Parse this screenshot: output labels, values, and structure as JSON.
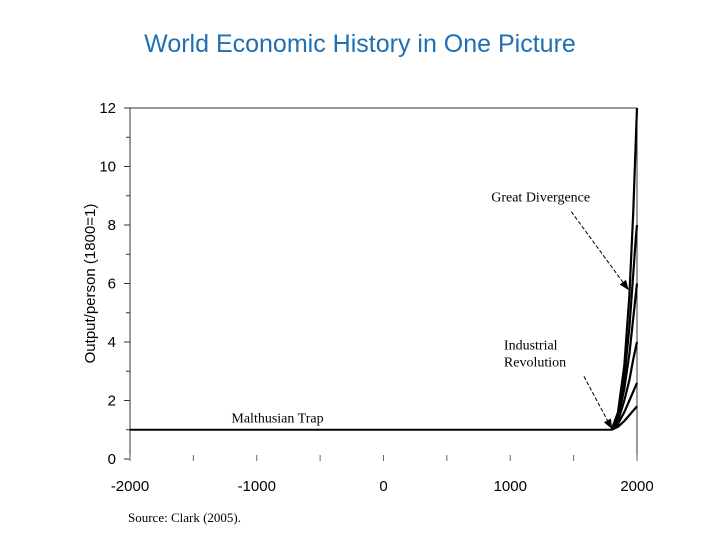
{
  "title": "World Economic History in One Picture",
  "source": "Source: Clark (2005).",
  "chart_data": {
    "type": "line",
    "title": "World Economic History in One Picture",
    "xlabel": "",
    "ylabel": "Output/person (1800=1)",
    "xlim": [
      -2000,
      2000
    ],
    "ylim": [
      0,
      12
    ],
    "x_ticks": [
      -2000,
      -1000,
      0,
      1000,
      2000
    ],
    "y_ticks": [
      0,
      2,
      4,
      6,
      8,
      10,
      12
    ],
    "grid": false,
    "series": [
      {
        "x": [
          -2000,
          1800
        ],
        "y": [
          1,
          1
        ]
      },
      {
        "x": [
          1800,
          1850,
          1900,
          1940,
          1970,
          1990,
          2000
        ],
        "y": [
          1,
          1.6,
          3.2,
          5.6,
          8.4,
          10.8,
          12
        ]
      },
      {
        "x": [
          1800,
          1850,
          1900,
          1940,
          1970,
          1990,
          2000
        ],
        "y": [
          1,
          1.5,
          2.8,
          4.5,
          6.3,
          7.5,
          8
        ]
      },
      {
        "x": [
          1800,
          1850,
          1900,
          1940,
          1970,
          1990,
          2000
        ],
        "y": [
          1,
          1.4,
          2.4,
          3.6,
          4.8,
          5.6,
          6
        ]
      },
      {
        "x": [
          1800,
          1850,
          1900,
          1940,
          1970,
          1990,
          2000
        ],
        "y": [
          1,
          1.3,
          2.0,
          2.7,
          3.4,
          3.8,
          4
        ]
      },
      {
        "x": [
          1800,
          1850,
          1900,
          1940,
          1970,
          1990,
          2000
        ],
        "y": [
          1,
          1.2,
          1.6,
          2.0,
          2.3,
          2.5,
          2.6
        ]
      },
      {
        "x": [
          1800,
          1850,
          1900,
          1940,
          1970,
          1990,
          2000
        ],
        "y": [
          1,
          1.1,
          1.3,
          1.5,
          1.65,
          1.75,
          1.8
        ]
      }
    ],
    "annotations": [
      {
        "text": "Malthusian Trap",
        "x": -1200,
        "y": 1.25
      },
      {
        "lines": [
          "Great Divergence"
        ],
        "x": 850,
        "y": 8.8,
        "arrow_to": [
          1930,
          5.8
        ]
      },
      {
        "lines": [
          "Industrial",
          "Revolution"
        ],
        "x": 950,
        "y": 3.75,
        "arrow_to": [
          1800,
          1.05
        ]
      }
    ]
  }
}
